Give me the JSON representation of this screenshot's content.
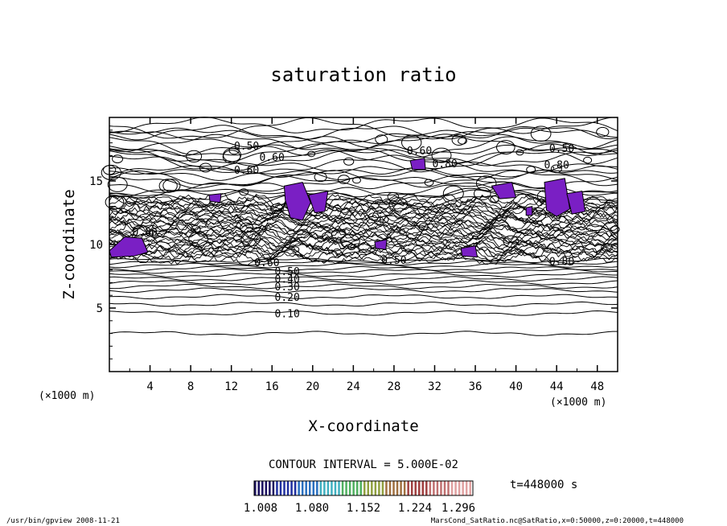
{
  "chart_data": {
    "type": "contour",
    "title": "saturation ratio",
    "xlabel": "X-coordinate",
    "ylabel": "Z-coordinate",
    "x_unit": "(×1000 m)",
    "y_unit": "(×1000 m)",
    "xlim": [
      0,
      50
    ],
    "ylim": [
      0,
      20
    ],
    "x_ticks": [
      4,
      8,
      12,
      16,
      20,
      24,
      28,
      32,
      36,
      40,
      44,
      48
    ],
    "y_ticks": [
      5,
      10,
      15
    ],
    "contour_labels": [
      {
        "text": "0.10",
        "x": 17.5,
        "y": 4.6
      },
      {
        "text": "0.20",
        "x": 17.5,
        "y": 5.9
      },
      {
        "text": "0.30",
        "x": 17.5,
        "y": 6.7
      },
      {
        "text": "0.40",
        "x": 17.5,
        "y": 7.3
      },
      {
        "text": "0.50",
        "x": 17.5,
        "y": 7.9
      },
      {
        "text": "0.60",
        "x": 15.5,
        "y": 8.6
      },
      {
        "text": "0.50",
        "x": 13.5,
        "y": 17.8
      },
      {
        "text": "0.60",
        "x": 16.0,
        "y": 16.9
      },
      {
        "text": "0.60",
        "x": 13.5,
        "y": 15.9
      },
      {
        "text": "0.60",
        "x": 30.5,
        "y": 17.4
      },
      {
        "text": "0.80",
        "x": 33.0,
        "y": 16.4
      },
      {
        "text": "0.50",
        "x": 44.5,
        "y": 17.6
      },
      {
        "text": "0.80",
        "x": 44.0,
        "y": 16.3
      },
      {
        "text": "0.80",
        "x": 3.5,
        "y": 11.0
      },
      {
        "text": "0.50",
        "x": 28.0,
        "y": 8.8
      },
      {
        "text": "0.80",
        "x": 44.5,
        "y": 8.7
      }
    ],
    "shaded_regions_above": 1.0,
    "contour_interval": "CONTOUR INTERVAL = 5.000E-02",
    "colorbar": {
      "ticks": [
        "1.008",
        "1.080",
        "1.152",
        "1.224",
        "1.296"
      ],
      "colors": [
        "#1a1060",
        "#2030a0",
        "#2a70c0",
        "#40b0c0",
        "#50b060",
        "#90a040",
        "#a07040",
        "#a04040",
        "#c07070",
        "#e0a0a0"
      ]
    },
    "time_label": "t=448000 s",
    "footer_left": "/usr/bin/gpview   2008-11-21",
    "footer_right": "MarsCond_SatRatio.nc@SatRatio,x=0:50000,z=0:20000,t=448000",
    "fill_color": "#7a1fc4"
  }
}
